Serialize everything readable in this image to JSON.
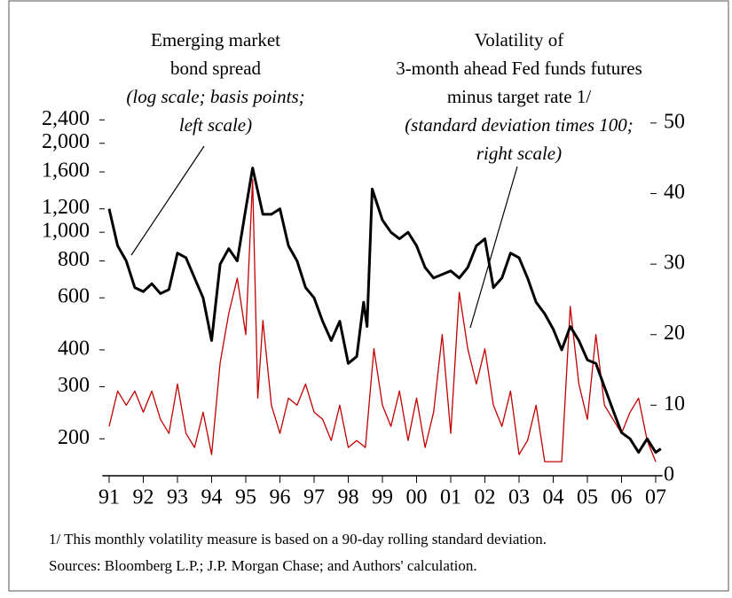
{
  "chart_data": {
    "type": "line",
    "annotations": [
      {
        "lines": [
          "Emerging market",
          "bond spread"
        ],
        "note_lines": [
          "(log scale; basis points;",
          "left scale)"
        ]
      },
      {
        "lines": [
          "Volatility of",
          "3-month ahead Fed funds futures",
          "minus target rate  1/"
        ],
        "note_lines": [
          "(standard deviation times 100;",
          "right scale)"
        ]
      }
    ],
    "notes": [
      "1/ This monthly volatility measure is based on a 90-day rolling standard deviation.",
      "Sources: Bloomberg L.P.; J.P. Morgan Chase; and Authors' calculation."
    ],
    "xlim": [
      1990.8,
      2007.2
    ],
    "xticks": [
      {
        "value": 1991,
        "label": "91"
      },
      {
        "value": 1992,
        "label": "92"
      },
      {
        "value": 1993,
        "label": "93"
      },
      {
        "value": 1994,
        "label": "94"
      },
      {
        "value": 1995,
        "label": "95"
      },
      {
        "value": 1996,
        "label": "96"
      },
      {
        "value": 1997,
        "label": "97"
      },
      {
        "value": 1998,
        "label": "98"
      },
      {
        "value": 1999,
        "label": "99"
      },
      {
        "value": 2000,
        "label": "00"
      },
      {
        "value": 2001,
        "label": "01"
      },
      {
        "value": 2002,
        "label": "02"
      },
      {
        "value": 2003,
        "label": "03"
      },
      {
        "value": 2004,
        "label": "04"
      },
      {
        "value": 2005,
        "label": "05"
      },
      {
        "value": 2006,
        "label": "06"
      },
      {
        "value": 2007,
        "label": "07"
      }
    ],
    "yscale": "log",
    "ylim": [
      150,
      3000
    ],
    "yticks": [
      200,
      300,
      400,
      600,
      800,
      {
        "value": 1000,
        "label": "1,000"
      },
      {
        "value": 1200,
        "label": "1,200"
      },
      {
        "value": 1600,
        "label": "1,600"
      },
      {
        "value": 2000,
        "label": "2,000"
      },
      {
        "value": 2400,
        "label": "2,400"
      }
    ],
    "y2lim": [
      0,
      54.5
    ],
    "y2ticks": [
      0,
      10,
      20,
      30,
      40,
      50
    ],
    "series": [
      {
        "color": "#000000",
        "axis": "y",
        "x": [
          1991,
          1991.25,
          1991.5,
          1991.75,
          1992,
          1992.25,
          1992.5,
          1992.75,
          1993,
          1993.25,
          1993.5,
          1993.75,
          1994,
          1994.25,
          1994.5,
          1994.75,
          1995,
          1995.2,
          1995.5,
          1995.75,
          1996,
          1996.25,
          1996.5,
          1996.75,
          1997,
          1997.25,
          1997.5,
          1997.75,
          1998,
          1998.25,
          1998.45,
          1998.55,
          1998.7,
          1999,
          1999.25,
          1999.5,
          1999.75,
          2000,
          2000.25,
          2000.5,
          2000.75,
          2001,
          2001.25,
          2001.5,
          2001.75,
          2002,
          2002.25,
          2002.5,
          2002.75,
          2003,
          2003.25,
          2003.5,
          2003.75,
          2004,
          2004.25,
          2004.5,
          2004.75,
          2005,
          2005.25,
          2005.5,
          2005.75,
          2006,
          2006.25,
          2006.5,
          2006.75,
          2007,
          2007.15
        ],
        "values": [
          1200,
          900,
          800,
          650,
          630,
          670,
          620,
          640,
          850,
          820,
          700,
          600,
          430,
          780,
          880,
          800,
          1200,
          1650,
          1150,
          1150,
          1200,
          900,
          800,
          650,
          600,
          500,
          430,
          500,
          360,
          380,
          580,
          480,
          1400,
          1100,
          1000,
          950,
          1000,
          900,
          760,
          700,
          720,
          740,
          700,
          760,
          900,
          950,
          650,
          700,
          850,
          820,
          700,
          580,
          530,
          470,
          400,
          480,
          430,
          370,
          360,
          300,
          250,
          210,
          200,
          180,
          200,
          180,
          185
        ]
      },
      {
        "color": "#c00000",
        "axis": "y2",
        "x": [
          1991,
          1991.25,
          1991.5,
          1991.75,
          1992,
          1992.25,
          1992.5,
          1992.75,
          1993,
          1993.25,
          1993.5,
          1993.75,
          1994,
          1994.25,
          1994.5,
          1994.75,
          1995,
          1995.2,
          1995.35,
          1995.5,
          1995.75,
          1996,
          1996.25,
          1996.5,
          1996.75,
          1997,
          1997.25,
          1997.5,
          1997.75,
          1998,
          1998.25,
          1998.5,
          1998.75,
          1999,
          1999.25,
          1999.5,
          1999.75,
          2000,
          2000.25,
          2000.5,
          2000.75,
          2001,
          2001.25,
          2001.5,
          2001.75,
          2002,
          2002.25,
          2002.5,
          2002.75,
          2003,
          2003.25,
          2003.5,
          2003.75,
          2004,
          2004.25,
          2004.5,
          2004.75,
          2005,
          2005.25,
          2005.5,
          2005.75,
          2006,
          2006.25,
          2006.5,
          2006.75,
          2007
        ],
        "values": [
          7,
          12,
          10,
          12,
          9,
          12,
          8,
          6,
          13,
          6,
          4,
          9,
          3,
          16,
          23,
          28,
          20,
          42,
          11,
          22,
          10,
          6,
          11,
          10,
          13,
          9,
          8,
          5,
          10,
          4,
          5,
          4,
          18,
          10,
          7,
          12,
          5,
          11,
          4,
          9,
          20,
          6,
          26,
          18,
          13,
          18,
          10,
          7,
          12,
          3,
          5,
          10,
          2,
          2,
          2,
          24,
          13,
          8,
          20,
          10,
          8,
          6,
          9,
          11,
          5,
          2
        ]
      }
    ]
  }
}
